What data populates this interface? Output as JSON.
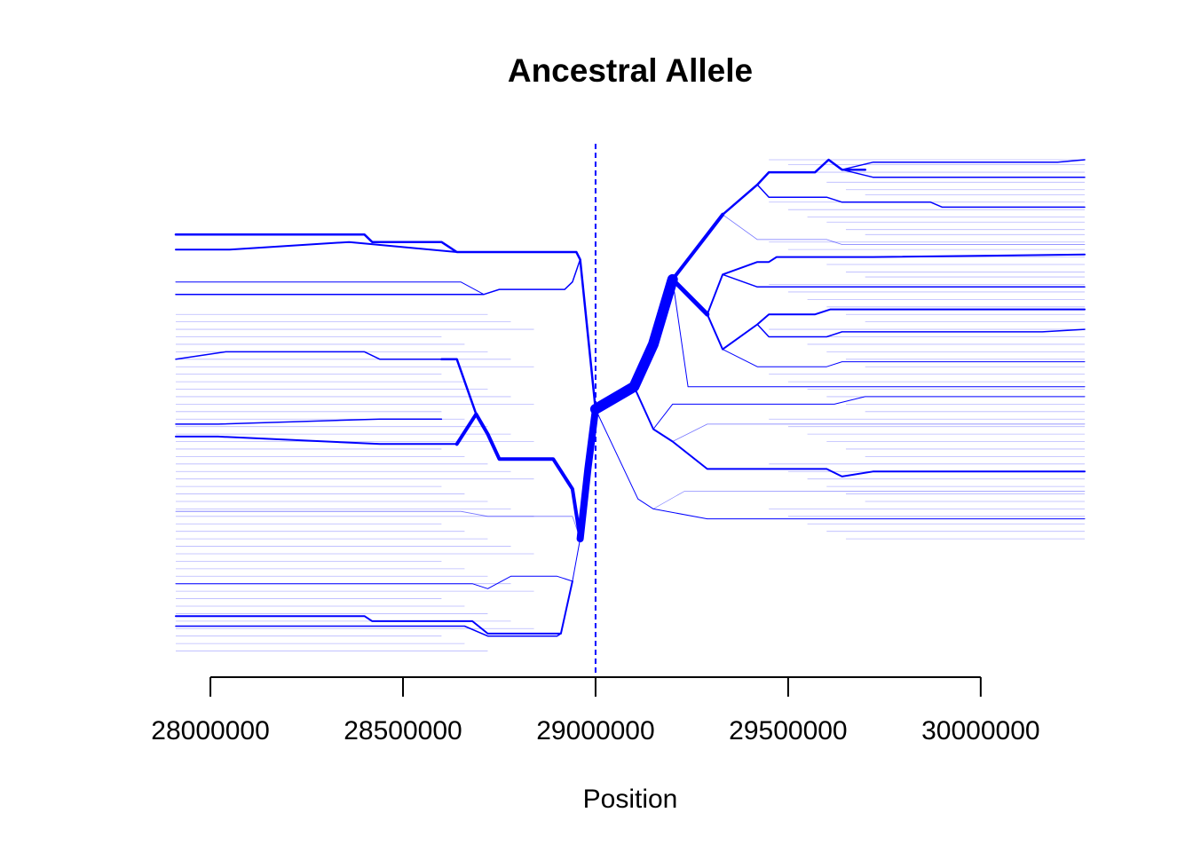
{
  "chart_data": {
    "type": "line",
    "title": "Ancestral Allele",
    "xlabel": "Position",
    "ylabel": "",
    "x_ticks": [
      28000000,
      28500000,
      29000000,
      29500000,
      30000000
    ],
    "x_tick_labels": [
      "28000000",
      "28500000",
      "29000000",
      "29500000",
      "30000000"
    ],
    "xlim": [
      27910000,
      30270000
    ],
    "focal_position": 29000000,
    "grid": false,
    "legend": "none",
    "colors": {
      "branch": "#0000ff",
      "focal_line": "#0000ff",
      "axis": "#000000"
    },
    "haplotypes_left": 37,
    "haplotypes_right": 36,
    "branches": [
      {
        "side": "right",
        "weight": 12,
        "points": [
          [
            29000000,
            0.5
          ],
          [
            29100000,
            0.455
          ],
          [
            29150000,
            0.37
          ],
          [
            29200000,
            0.24
          ]
        ]
      },
      {
        "side": "right",
        "weight": 5,
        "points": [
          [
            29200000,
            0.24
          ],
          [
            29290000,
            0.31
          ]
        ]
      },
      {
        "side": "right",
        "weight": 4,
        "points": [
          [
            29200000,
            0.24
          ],
          [
            29290000,
            0.15
          ],
          [
            29330000,
            0.11
          ]
        ]
      },
      {
        "side": "right",
        "weight": 2.5,
        "points": [
          [
            29330000,
            0.11
          ],
          [
            29420000,
            0.05
          ],
          [
            29450000,
            0.025
          ],
          [
            29570000,
            0.025
          ],
          [
            29605000,
            0.0
          ],
          [
            29640000,
            0.02
          ],
          [
            29700000,
            0.02
          ]
        ]
      },
      {
        "side": "right",
        "weight": 1.5,
        "points": [
          [
            29640000,
            0.02
          ],
          [
            29720000,
            0.005
          ],
          [
            30200000,
            0.005
          ],
          [
            30270000,
            0.0
          ]
        ]
      },
      {
        "side": "right",
        "weight": 1.5,
        "points": [
          [
            29640000,
            0.02
          ],
          [
            29720000,
            0.035
          ],
          [
            30270000,
            0.035
          ]
        ]
      },
      {
        "side": "right",
        "weight": 1.5,
        "points": [
          [
            29420000,
            0.05
          ],
          [
            29450000,
            0.075
          ],
          [
            29600000,
            0.075
          ],
          [
            29640000,
            0.085
          ],
          [
            29870000,
            0.085
          ],
          [
            29900000,
            0.095
          ],
          [
            30270000,
            0.095
          ]
        ]
      },
      {
        "side": "right",
        "weight": 0.8,
        "points": [
          [
            29330000,
            0.11
          ],
          [
            29420000,
            0.16
          ],
          [
            29600000,
            0.16
          ],
          [
            29640000,
            0.17
          ],
          [
            30270000,
            0.17
          ]
        ]
      },
      {
        "side": "right",
        "weight": 2,
        "points": [
          [
            29290000,
            0.31
          ],
          [
            29330000,
            0.23
          ],
          [
            29420000,
            0.205
          ],
          [
            29450000,
            0.205
          ],
          [
            29470000,
            0.195
          ],
          [
            29720000,
            0.195
          ],
          [
            30270000,
            0.19
          ]
        ]
      },
      {
        "side": "right",
        "weight": 1.5,
        "points": [
          [
            29330000,
            0.23
          ],
          [
            29420000,
            0.255
          ],
          [
            30270000,
            0.255
          ]
        ]
      },
      {
        "side": "right",
        "weight": 2,
        "points": [
          [
            29290000,
            0.31
          ],
          [
            29330000,
            0.38
          ],
          [
            29420000,
            0.33
          ],
          [
            29450000,
            0.31
          ],
          [
            29570000,
            0.31
          ],
          [
            29610000,
            0.3
          ],
          [
            30270000,
            0.3
          ]
        ]
      },
      {
        "side": "right",
        "weight": 1.5,
        "points": [
          [
            29420000,
            0.33
          ],
          [
            29450000,
            0.355
          ],
          [
            29600000,
            0.355
          ],
          [
            29640000,
            0.345
          ],
          [
            30160000,
            0.345
          ],
          [
            30270000,
            0.34
          ]
        ]
      },
      {
        "side": "right",
        "weight": 1,
        "points": [
          [
            29330000,
            0.38
          ],
          [
            29420000,
            0.415
          ],
          [
            29600000,
            0.415
          ],
          [
            29640000,
            0.405
          ],
          [
            30270000,
            0.405
          ]
        ]
      },
      {
        "side": "right",
        "weight": 1,
        "points": [
          [
            29200000,
            0.24
          ],
          [
            29240000,
            0.455
          ],
          [
            30270000,
            0.455
          ]
        ]
      },
      {
        "side": "right",
        "weight": 2,
        "points": [
          [
            29100000,
            0.455
          ],
          [
            29150000,
            0.54
          ],
          [
            29200000,
            0.565
          ],
          [
            29290000,
            0.62
          ],
          [
            29600000,
            0.62
          ],
          [
            29640000,
            0.635
          ],
          [
            29720000,
            0.625
          ],
          [
            30270000,
            0.625
          ]
        ]
      },
      {
        "side": "right",
        "weight": 1,
        "points": [
          [
            29150000,
            0.54
          ],
          [
            29200000,
            0.49
          ],
          [
            29620000,
            0.49
          ],
          [
            29700000,
            0.475
          ],
          [
            30270000,
            0.475
          ]
        ]
      },
      {
        "side": "right",
        "weight": 0.8,
        "points": [
          [
            29200000,
            0.565
          ],
          [
            29290000,
            0.53
          ],
          [
            29720000,
            0.53
          ],
          [
            30270000,
            0.53
          ]
        ]
      },
      {
        "side": "right",
        "weight": 1,
        "points": [
          [
            29000000,
            0.5
          ],
          [
            29110000,
            0.68
          ],
          [
            29150000,
            0.7
          ],
          [
            29290000,
            0.72
          ],
          [
            30270000,
            0.72
          ]
        ]
      },
      {
        "side": "right",
        "weight": 0.6,
        "points": [
          [
            29150000,
            0.7
          ],
          [
            29230000,
            0.665
          ],
          [
            30270000,
            0.665
          ]
        ]
      },
      {
        "side": "left",
        "weight": 8,
        "points": [
          [
            29000000,
            0.5
          ],
          [
            28980000,
            0.62
          ],
          [
            28960000,
            0.76
          ]
        ]
      },
      {
        "side": "left",
        "weight": 4,
        "points": [
          [
            28960000,
            0.76
          ],
          [
            28940000,
            0.66
          ],
          [
            28890000,
            0.6
          ],
          [
            28750000,
            0.6
          ],
          [
            28720000,
            0.55
          ],
          [
            28690000,
            0.51
          ],
          [
            28640000,
            0.57
          ]
        ]
      },
      {
        "side": "left",
        "weight": 2.5,
        "points": [
          [
            28690000,
            0.51
          ],
          [
            28640000,
            0.4
          ],
          [
            28600000,
            0.4
          ]
        ]
      },
      {
        "side": "left",
        "weight": 2,
        "points": [
          [
            28640000,
            0.57
          ],
          [
            28440000,
            0.57
          ],
          [
            28020000,
            0.555
          ],
          [
            27910000,
            0.555
          ]
        ]
      },
      {
        "side": "left",
        "weight": 1.5,
        "points": [
          [
            28600000,
            0.4
          ],
          [
            28440000,
            0.4
          ],
          [
            28400000,
            0.385
          ],
          [
            28040000,
            0.385
          ],
          [
            27910000,
            0.4
          ]
        ]
      },
      {
        "side": "left",
        "weight": 1.5,
        "points": [
          [
            28600000,
            0.52
          ],
          [
            28440000,
            0.52
          ],
          [
            28020000,
            0.53
          ],
          [
            27910000,
            0.53
          ]
        ]
      },
      {
        "side": "left",
        "weight": 2.5,
        "points": [
          [
            29000000,
            0.5
          ],
          [
            28960000,
            0.2
          ],
          [
            28950000,
            0.185
          ],
          [
            28640000,
            0.185
          ],
          [
            28600000,
            0.165
          ],
          [
            28420000,
            0.165
          ],
          [
            28400000,
            0.15
          ],
          [
            27910000,
            0.15
          ]
        ]
      },
      {
        "side": "left",
        "weight": 2,
        "points": [
          [
            28640000,
            0.185
          ],
          [
            28360000,
            0.165
          ],
          [
            28050000,
            0.18
          ],
          [
            27910000,
            0.18
          ]
        ]
      },
      {
        "side": "left",
        "weight": 1.5,
        "points": [
          [
            28960000,
            0.2
          ],
          [
            28940000,
            0.245
          ],
          [
            28920000,
            0.26
          ],
          [
            28750000,
            0.26
          ],
          [
            28710000,
            0.27
          ],
          [
            28650000,
            0.27
          ],
          [
            27910000,
            0.27
          ]
        ]
      },
      {
        "side": "left",
        "weight": 1,
        "points": [
          [
            28710000,
            0.27
          ],
          [
            28650000,
            0.245
          ],
          [
            27910000,
            0.245
          ]
        ]
      },
      {
        "side": "left",
        "weight": 1,
        "points": [
          [
            28960000,
            0.76
          ],
          [
            28940000,
            0.845
          ],
          [
            28900000,
            0.835
          ],
          [
            28780000,
            0.835
          ],
          [
            28720000,
            0.86
          ],
          [
            28680000,
            0.85
          ],
          [
            27910000,
            0.85
          ]
        ]
      },
      {
        "side": "left",
        "weight": 2,
        "points": [
          [
            28940000,
            0.845
          ],
          [
            28910000,
            0.95
          ],
          [
            28720000,
            0.95
          ],
          [
            28680000,
            0.925
          ],
          [
            28420000,
            0.925
          ],
          [
            28400000,
            0.915
          ],
          [
            27910000,
            0.915
          ]
        ]
      },
      {
        "side": "left",
        "weight": 1.5,
        "points": [
          [
            28910000,
            0.95
          ],
          [
            28900000,
            0.955
          ],
          [
            28720000,
            0.955
          ],
          [
            28660000,
            0.935
          ],
          [
            27910000,
            0.935
          ]
        ]
      },
      {
        "side": "left",
        "weight": 0.8,
        "points": [
          [
            28960000,
            0.76
          ],
          [
            28940000,
            0.715
          ],
          [
            28720000,
            0.715
          ],
          [
            28650000,
            0.705
          ],
          [
            27910000,
            0.705
          ]
        ]
      }
    ],
    "background_haplotypes_y": [
      0.0,
      0.01,
      0.025,
      0.045,
      0.06,
      0.07,
      0.085,
      0.1,
      0.115,
      0.125,
      0.14,
      0.15,
      0.165,
      0.18,
      0.195,
      0.21,
      0.225,
      0.235,
      0.25,
      0.265,
      0.28,
      0.295,
      0.31,
      0.325,
      0.34,
      0.355,
      0.37,
      0.385,
      0.4,
      0.415,
      0.43,
      0.445,
      0.46,
      0.475,
      0.49,
      0.505,
      0.52,
      0.535,
      0.55,
      0.565,
      0.58,
      0.595,
      0.61,
      0.625,
      0.64,
      0.655,
      0.67,
      0.685,
      0.7,
      0.715,
      0.73,
      0.745,
      0.76,
      0.775,
      0.79,
      0.805,
      0.82,
      0.835,
      0.85,
      0.865,
      0.88,
      0.895,
      0.91,
      0.925,
      0.94,
      0.955,
      0.97,
      0.985
    ]
  }
}
